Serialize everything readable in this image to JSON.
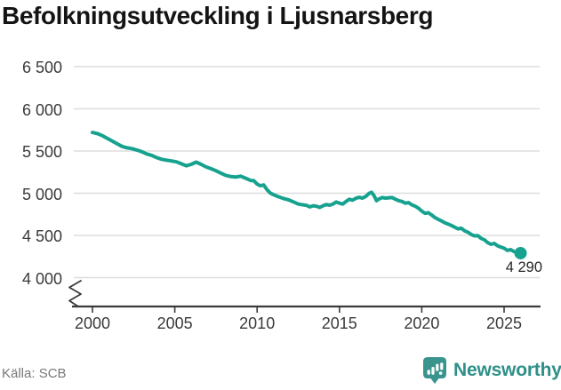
{
  "title": "Befolkningsutveckling i Ljusnarsberg",
  "source": "Källa: SCB",
  "annotation": {
    "latest_value_label": "4 290"
  },
  "branding": {
    "name": "Newsworthy",
    "icon": "newsworthy-bubble-bar-chart-icon",
    "color": "#3a948e"
  },
  "colors": {
    "line": "#17a28f",
    "grid": "#dedede",
    "axis": "#3a3a3a",
    "tick_text": "#3a3a3a",
    "title_text": "#141414",
    "source_text": "#787878",
    "background": "#ffffff"
  },
  "chart_data": {
    "type": "line",
    "title": "Befolkningsutveckling i Ljusnarsberg",
    "xlabel": "",
    "ylabel": "",
    "grid": "horizontal",
    "x_axis": {
      "ticks": [
        2000,
        2005,
        2010,
        2015,
        2020,
        2025
      ],
      "tick_labels": [
        "2000",
        "2005",
        "2010",
        "2015",
        "2020",
        "2025"
      ],
      "range": [
        1999,
        2027
      ]
    },
    "y_axis": {
      "ticks": [
        6500,
        6000,
        5500,
        5000,
        4500,
        4000
      ],
      "tick_labels": [
        "6 500",
        "6 000",
        "5 500",
        "5 000",
        "4 500",
        "4 000"
      ],
      "range_shown": [
        4000,
        6500
      ],
      "axis_break": true
    },
    "series": [
      {
        "name": "Befolkning",
        "color": "#17a28f",
        "latest": {
          "x": 2026,
          "y": 4290,
          "label": "4 290"
        },
        "points": [
          [
            2000.0,
            5720
          ],
          [
            2000.3,
            5706
          ],
          [
            2000.6,
            5682
          ],
          [
            2000.9,
            5650
          ],
          [
            2001.2,
            5618
          ],
          [
            2001.5,
            5585
          ],
          [
            2001.8,
            5555
          ],
          [
            2002.1,
            5538
          ],
          [
            2002.4,
            5528
          ],
          [
            2002.7,
            5512
          ],
          [
            2003.0,
            5492
          ],
          [
            2003.3,
            5465
          ],
          [
            2003.6,
            5448
          ],
          [
            2003.9,
            5422
          ],
          [
            2004.2,
            5402
          ],
          [
            2004.5,
            5392
          ],
          [
            2004.8,
            5382
          ],
          [
            2005.1,
            5372
          ],
          [
            2005.4,
            5348
          ],
          [
            2005.7,
            5325
          ],
          [
            2006.0,
            5342
          ],
          [
            2006.3,
            5368
          ],
          [
            2006.6,
            5342
          ],
          [
            2006.9,
            5312
          ],
          [
            2007.2,
            5290
          ],
          [
            2007.5,
            5266
          ],
          [
            2007.8,
            5238
          ],
          [
            2008.1,
            5212
          ],
          [
            2008.4,
            5198
          ],
          [
            2008.7,
            5192
          ],
          [
            2009.0,
            5202
          ],
          [
            2009.3,
            5178
          ],
          [
            2009.6,
            5152
          ],
          [
            2009.8,
            5148
          ],
          [
            2010.0,
            5108
          ],
          [
            2010.2,
            5088
          ],
          [
            2010.4,
            5098
          ],
          [
            2010.6,
            5042
          ],
          [
            2010.8,
            5002
          ],
          [
            2011.0,
            4982
          ],
          [
            2011.3,
            4958
          ],
          [
            2011.6,
            4938
          ],
          [
            2011.9,
            4922
          ],
          [
            2012.2,
            4898
          ],
          [
            2012.5,
            4872
          ],
          [
            2012.8,
            4862
          ],
          [
            2013.0,
            4856
          ],
          [
            2013.2,
            4838
          ],
          [
            2013.4,
            4852
          ],
          [
            2013.6,
            4846
          ],
          [
            2013.8,
            4832
          ],
          [
            2014.0,
            4852
          ],
          [
            2014.2,
            4866
          ],
          [
            2014.4,
            4858
          ],
          [
            2014.6,
            4872
          ],
          [
            2014.8,
            4896
          ],
          [
            2015.0,
            4882
          ],
          [
            2015.2,
            4872
          ],
          [
            2015.4,
            4902
          ],
          [
            2015.6,
            4928
          ],
          [
            2015.8,
            4918
          ],
          [
            2016.0,
            4940
          ],
          [
            2016.2,
            4952
          ],
          [
            2016.4,
            4942
          ],
          [
            2016.6,
            4962
          ],
          [
            2016.8,
            4998
          ],
          [
            2016.95,
            5012
          ],
          [
            2017.1,
            4972
          ],
          [
            2017.25,
            4912
          ],
          [
            2017.4,
            4932
          ],
          [
            2017.6,
            4948
          ],
          [
            2017.8,
            4942
          ],
          [
            2018.0,
            4946
          ],
          [
            2018.2,
            4948
          ],
          [
            2018.4,
            4928
          ],
          [
            2018.6,
            4912
          ],
          [
            2018.8,
            4902
          ],
          [
            2019.0,
            4882
          ],
          [
            2019.2,
            4888
          ],
          [
            2019.4,
            4862
          ],
          [
            2019.6,
            4846
          ],
          [
            2019.8,
            4822
          ],
          [
            2020.0,
            4788
          ],
          [
            2020.2,
            4762
          ],
          [
            2020.4,
            4768
          ],
          [
            2020.6,
            4742
          ],
          [
            2020.8,
            4712
          ],
          [
            2021.0,
            4690
          ],
          [
            2021.2,
            4672
          ],
          [
            2021.4,
            4650
          ],
          [
            2021.6,
            4635
          ],
          [
            2021.8,
            4618
          ],
          [
            2022.0,
            4598
          ],
          [
            2022.2,
            4578
          ],
          [
            2022.4,
            4585
          ],
          [
            2022.6,
            4555
          ],
          [
            2022.8,
            4538
          ],
          [
            2023.0,
            4512
          ],
          [
            2023.2,
            4495
          ],
          [
            2023.4,
            4498
          ],
          [
            2023.6,
            4465
          ],
          [
            2023.8,
            4448
          ],
          [
            2024.0,
            4415
          ],
          [
            2024.2,
            4395
          ],
          [
            2024.4,
            4405
          ],
          [
            2024.6,
            4378
          ],
          [
            2024.8,
            4362
          ],
          [
            2025.0,
            4348
          ],
          [
            2025.2,
            4322
          ],
          [
            2025.4,
            4332
          ],
          [
            2025.6,
            4308
          ],
          [
            2025.8,
            4298
          ],
          [
            2026.0,
            4290
          ]
        ]
      }
    ]
  }
}
